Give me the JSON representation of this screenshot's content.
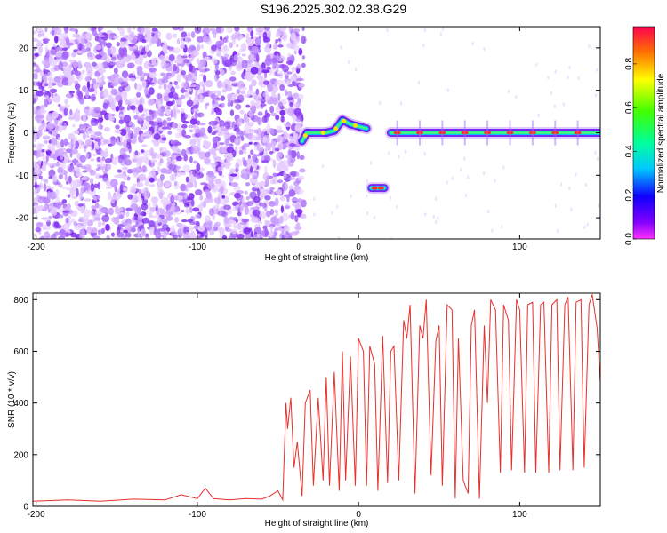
{
  "title": "S196.2025.302.02.38.G29",
  "chart_data": [
    {
      "type": "heatmap",
      "xlabel": "Height of straight line (km)",
      "ylabel": "Frequency (Hz)",
      "xlim": [
        -202,
        150
      ],
      "ylim": [
        -25,
        25
      ],
      "xticks": [
        -200,
        -100,
        0,
        100
      ],
      "yticks": [
        20,
        10,
        0,
        -10,
        -20
      ],
      "colorbar": {
        "label": "Normalized spectral amplitude",
        "range": [
          0,
          0.97
        ],
        "ticks": [
          "0.0",
          "0.2",
          "0.4",
          "0.6",
          "0.8"
        ]
      },
      "ridge": [
        {
          "x": -35,
          "y": -2
        },
        {
          "x": -32,
          "y": 0
        },
        {
          "x": -20,
          "y": 0
        },
        {
          "x": -15,
          "y": 0.5
        },
        {
          "x": -10,
          "y": 3
        },
        {
          "x": -5,
          "y": 2
        },
        {
          "x": 0,
          "y": 1.5
        },
        {
          "x": 5,
          "y": 1
        },
        {
          "x": 8,
          "y": -13
        },
        {
          "x": 16,
          "y": -13
        },
        {
          "x": 20,
          "y": 0
        },
        {
          "x": 150,
          "y": 0
        }
      ]
    },
    {
      "type": "line",
      "xlabel": "Height of straight line (km)",
      "ylabel": "SNR (10 * v/v)",
      "xlim": [
        -202,
        150
      ],
      "ylim": [
        0,
        825
      ],
      "xticks": [
        -200,
        -100,
        0,
        100
      ],
      "yticks": [
        800,
        600,
        400,
        200,
        0
      ],
      "series": [
        {
          "color": "#e8302c",
          "x": [
            -202,
            -180,
            -160,
            -140,
            -120,
            -110,
            -100,
            -95,
            -90,
            -80,
            -70,
            -60,
            -55,
            -50,
            -47,
            -45,
            -44,
            -42,
            -40,
            -38,
            -35,
            -33,
            -30,
            -28,
            -25,
            -22,
            -20,
            -18,
            -15,
            -12,
            -10,
            -8,
            -5,
            -2,
            0,
            3,
            5,
            7,
            10,
            12,
            15,
            18,
            20,
            22,
            25,
            28,
            30,
            32,
            35,
            38,
            40,
            42,
            45,
            48,
            50,
            52,
            55,
            58,
            60,
            62,
            65,
            68,
            70,
            72,
            75,
            78,
            80,
            82,
            85,
            88,
            90,
            93,
            95,
            98,
            100,
            103,
            105,
            108,
            110,
            113,
            115,
            118,
            120,
            123,
            125,
            128,
            130,
            133,
            135,
            138,
            140,
            143,
            145,
            148,
            150
          ],
          "y": [
            20,
            25,
            20,
            28,
            25,
            45,
            30,
            70,
            30,
            25,
            30,
            28,
            40,
            60,
            25,
            400,
            300,
            420,
            150,
            250,
            40,
            400,
            450,
            80,
            420,
            100,
            500,
            80,
            520,
            60,
            600,
            100,
            580,
            80,
            650,
            600,
            80,
            620,
            550,
            60,
            660,
            90,
            600,
            620,
            100,
            720,
            650,
            780,
            50,
            700,
            650,
            800,
            120,
            640,
            700,
            80,
            780,
            760,
            30,
            650,
            100,
            50,
            700,
            760,
            30,
            700,
            400,
            800,
            760,
            130,
            780,
            720,
            140,
            800,
            760,
            130,
            780,
            790,
            130,
            780,
            790,
            130,
            780,
            800,
            140,
            780,
            810,
            140,
            790,
            800,
            150,
            780,
            820,
            690,
            480
          ]
        }
      ]
    }
  ]
}
